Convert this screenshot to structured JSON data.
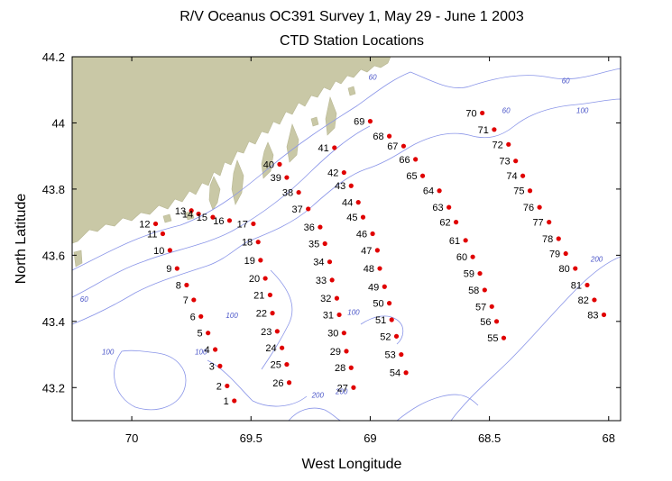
{
  "title": {
    "line1": "R/V Oceanus OC391 Survey 1, May 29 - June 1 2003",
    "line2": "CTD Station Locations"
  },
  "axes": {
    "xlabel": "West Longitude",
    "ylabel": "North Latitude",
    "xlim": [
      70.25,
      67.95
    ],
    "ylim": [
      43.1,
      44.2
    ],
    "xticks": [
      {
        "value": 70,
        "label": "70"
      },
      {
        "value": 69.5,
        "label": "69.5"
      },
      {
        "value": 69,
        "label": "69"
      },
      {
        "value": 68.5,
        "label": "68.5"
      },
      {
        "value": 68,
        "label": "68"
      }
    ],
    "yticks": [
      {
        "value": 43.2,
        "label": "43.2"
      },
      {
        "value": 43.4,
        "label": "43.4"
      },
      {
        "value": 43.6,
        "label": "43.6"
      },
      {
        "value": 43.8,
        "label": "43.8"
      },
      {
        "value": 44,
        "label": "44"
      },
      {
        "value": 44.2,
        "label": "44.2"
      }
    ]
  },
  "colors": {
    "land": "#c9c8a6",
    "contour": "#8a95e8",
    "station": "#e00000"
  },
  "contour_labels": [
    {
      "text": "60",
      "lon": 68.99,
      "lat": 44.13
    },
    {
      "text": "60",
      "lon": 68.43,
      "lat": 44.03
    },
    {
      "text": "60",
      "lon": 68.18,
      "lat": 44.12
    },
    {
      "text": "100",
      "lon": 68.11,
      "lat": 44.03
    },
    {
      "text": "60",
      "lon": 70.2,
      "lat": 43.46
    },
    {
      "text": "100",
      "lon": 70.1,
      "lat": 43.3
    },
    {
      "text": "100",
      "lon": 69.71,
      "lat": 43.3
    },
    {
      "text": "100",
      "lon": 69.58,
      "lat": 43.41
    },
    {
      "text": "100",
      "lon": 69.07,
      "lat": 43.42
    },
    {
      "text": "200",
      "lon": 69.12,
      "lat": 43.18
    },
    {
      "text": "200",
      "lon": 69.22,
      "lat": 43.17
    },
    {
      "text": "200",
      "lon": 68.05,
      "lat": 43.58
    }
  ],
  "chart_data": {
    "type": "scatter",
    "title": "R/V Oceanus OC391 Survey 1, May 29 - June 1 2003 CTD Station Locations",
    "xlabel": "West Longitude",
    "ylabel": "North Latitude",
    "xlim": [
      70.25,
      67.95
    ],
    "ylim": [
      43.1,
      44.2
    ],
    "grid": false,
    "stations": [
      {
        "id": "1",
        "lon": 69.57,
        "lat": 43.16
      },
      {
        "id": "2",
        "lon": 69.6,
        "lat": 43.205
      },
      {
        "id": "3",
        "lon": 69.63,
        "lat": 43.265
      },
      {
        "id": "4",
        "lon": 69.65,
        "lat": 43.315
      },
      {
        "id": "5",
        "lon": 69.68,
        "lat": 43.365
      },
      {
        "id": "6",
        "lon": 69.71,
        "lat": 43.415
      },
      {
        "id": "7",
        "lon": 69.74,
        "lat": 43.465
      },
      {
        "id": "8",
        "lon": 69.77,
        "lat": 43.51
      },
      {
        "id": "9",
        "lon": 69.81,
        "lat": 43.56
      },
      {
        "id": "10",
        "lon": 69.84,
        "lat": 43.615
      },
      {
        "id": "11",
        "lon": 69.87,
        "lat": 43.665
      },
      {
        "id": "12",
        "lon": 69.9,
        "lat": 43.695
      },
      {
        "id": "13",
        "lon": 69.75,
        "lat": 43.735
      },
      {
        "id": "14",
        "lon": 69.72,
        "lat": 43.725
      },
      {
        "id": "15",
        "lon": 69.66,
        "lat": 43.715
      },
      {
        "id": "16",
        "lon": 69.59,
        "lat": 43.705
      },
      {
        "id": "17",
        "lon": 69.49,
        "lat": 43.695
      },
      {
        "id": "18",
        "lon": 69.47,
        "lat": 43.64
      },
      {
        "id": "19",
        "lon": 69.46,
        "lat": 43.585
      },
      {
        "id": "20",
        "lon": 69.44,
        "lat": 43.53
      },
      {
        "id": "21",
        "lon": 69.42,
        "lat": 43.48
      },
      {
        "id": "22",
        "lon": 69.41,
        "lat": 43.425
      },
      {
        "id": "23",
        "lon": 69.39,
        "lat": 43.37
      },
      {
        "id": "24",
        "lon": 69.37,
        "lat": 43.32
      },
      {
        "id": "25",
        "lon": 69.35,
        "lat": 43.27
      },
      {
        "id": "26",
        "lon": 69.34,
        "lat": 43.215
      },
      {
        "id": "27",
        "lon": 69.07,
        "lat": 43.2
      },
      {
        "id": "28",
        "lon": 69.08,
        "lat": 43.26
      },
      {
        "id": "29",
        "lon": 69.1,
        "lat": 43.31
      },
      {
        "id": "30",
        "lon": 69.11,
        "lat": 43.365
      },
      {
        "id": "31",
        "lon": 69.13,
        "lat": 43.42
      },
      {
        "id": "32",
        "lon": 69.14,
        "lat": 43.47
      },
      {
        "id": "33",
        "lon": 69.16,
        "lat": 43.525
      },
      {
        "id": "34",
        "lon": 69.17,
        "lat": 43.58
      },
      {
        "id": "35",
        "lon": 69.19,
        "lat": 43.635
      },
      {
        "id": "36",
        "lon": 69.21,
        "lat": 43.685
      },
      {
        "id": "37",
        "lon": 69.26,
        "lat": 43.74
      },
      {
        "id": "38",
        "lon": 69.3,
        "lat": 43.79
      },
      {
        "id": "39",
        "lon": 69.35,
        "lat": 43.835
      },
      {
        "id": "40",
        "lon": 69.38,
        "lat": 43.875
      },
      {
        "id": "41",
        "lon": 69.15,
        "lat": 43.925
      },
      {
        "id": "42",
        "lon": 69.11,
        "lat": 43.85
      },
      {
        "id": "43",
        "lon": 69.08,
        "lat": 43.81
      },
      {
        "id": "44",
        "lon": 69.05,
        "lat": 43.76
      },
      {
        "id": "45",
        "lon": 69.03,
        "lat": 43.715
      },
      {
        "id": "46",
        "lon": 68.99,
        "lat": 43.665
      },
      {
        "id": "47",
        "lon": 68.97,
        "lat": 43.615
      },
      {
        "id": "48",
        "lon": 68.96,
        "lat": 43.56
      },
      {
        "id": "49",
        "lon": 68.94,
        "lat": 43.505
      },
      {
        "id": "50",
        "lon": 68.92,
        "lat": 43.455
      },
      {
        "id": "51",
        "lon": 68.91,
        "lat": 43.405
      },
      {
        "id": "52",
        "lon": 68.89,
        "lat": 43.355
      },
      {
        "id": "53",
        "lon": 68.87,
        "lat": 43.3
      },
      {
        "id": "54",
        "lon": 68.85,
        "lat": 43.245
      },
      {
        "id": "55",
        "lon": 68.44,
        "lat": 43.35
      },
      {
        "id": "56",
        "lon": 68.47,
        "lat": 43.4
      },
      {
        "id": "57",
        "lon": 68.49,
        "lat": 43.445
      },
      {
        "id": "58",
        "lon": 68.52,
        "lat": 43.495
      },
      {
        "id": "59",
        "lon": 68.54,
        "lat": 43.545
      },
      {
        "id": "60",
        "lon": 68.57,
        "lat": 43.595
      },
      {
        "id": "61",
        "lon": 68.6,
        "lat": 43.645
      },
      {
        "id": "62",
        "lon": 68.64,
        "lat": 43.7
      },
      {
        "id": "63",
        "lon": 68.67,
        "lat": 43.745
      },
      {
        "id": "64",
        "lon": 68.71,
        "lat": 43.795
      },
      {
        "id": "65",
        "lon": 68.78,
        "lat": 43.84
      },
      {
        "id": "66",
        "lon": 68.81,
        "lat": 43.89
      },
      {
        "id": "67",
        "lon": 68.86,
        "lat": 43.93
      },
      {
        "id": "68",
        "lon": 68.92,
        "lat": 43.96
      },
      {
        "id": "69",
        "lon": 69.0,
        "lat": 44.005
      },
      {
        "id": "70",
        "lon": 68.53,
        "lat": 44.03
      },
      {
        "id": "71",
        "lon": 68.48,
        "lat": 43.98
      },
      {
        "id": "72",
        "lon": 68.42,
        "lat": 43.935
      },
      {
        "id": "73",
        "lon": 68.39,
        "lat": 43.885
      },
      {
        "id": "74",
        "lon": 68.36,
        "lat": 43.84
      },
      {
        "id": "75",
        "lon": 68.33,
        "lat": 43.795
      },
      {
        "id": "76",
        "lon": 68.29,
        "lat": 43.745
      },
      {
        "id": "77",
        "lon": 68.25,
        "lat": 43.7
      },
      {
        "id": "78",
        "lon": 68.21,
        "lat": 43.65
      },
      {
        "id": "79",
        "lon": 68.18,
        "lat": 43.605
      },
      {
        "id": "80",
        "lon": 68.14,
        "lat": 43.56
      },
      {
        "id": "81",
        "lon": 68.09,
        "lat": 43.51
      },
      {
        "id": "82",
        "lon": 68.06,
        "lat": 43.465
      },
      {
        "id": "83",
        "lon": 68.02,
        "lat": 43.42
      }
    ]
  }
}
